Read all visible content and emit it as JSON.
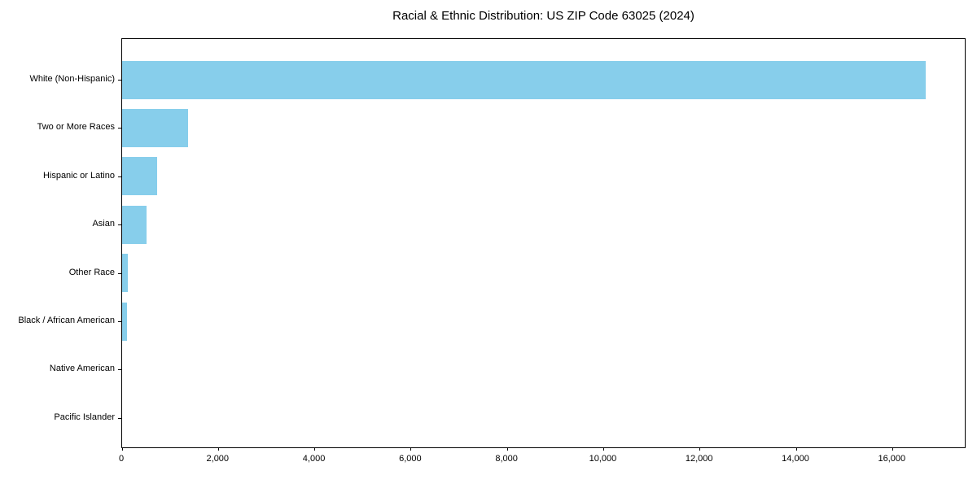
{
  "page_title": "Racial & Ethnic Distribution: US ZIP Code 63025 (2024)",
  "chart_data": {
    "type": "bar",
    "orientation": "horizontal",
    "title": "Racial & Ethnic Distribution: US ZIP Code 63025 (2024)",
    "categories": [
      "White (Non-Hispanic)",
      "Two or More Races",
      "Hispanic or Latino",
      "Asian",
      "Other Race",
      "Black / African American",
      "Native American",
      "Pacific Islander"
    ],
    "values": [
      16680,
      1370,
      720,
      500,
      110,
      105,
      0,
      0
    ],
    "bar_color": "#87CEEB",
    "xlabel": "",
    "ylabel": "",
    "xlim": [
      0,
      17500
    ],
    "x_ticks": [
      0,
      2000,
      4000,
      6000,
      8000,
      10000,
      12000,
      14000,
      16000
    ],
    "x_tick_labels": [
      "0",
      "2,000",
      "4,000",
      "6,000",
      "8,000",
      "10,000",
      "12,000",
      "14,000",
      "16,000"
    ],
    "grid": false,
    "legend": null,
    "category_order": "descending-by-value, largest at top"
  }
}
